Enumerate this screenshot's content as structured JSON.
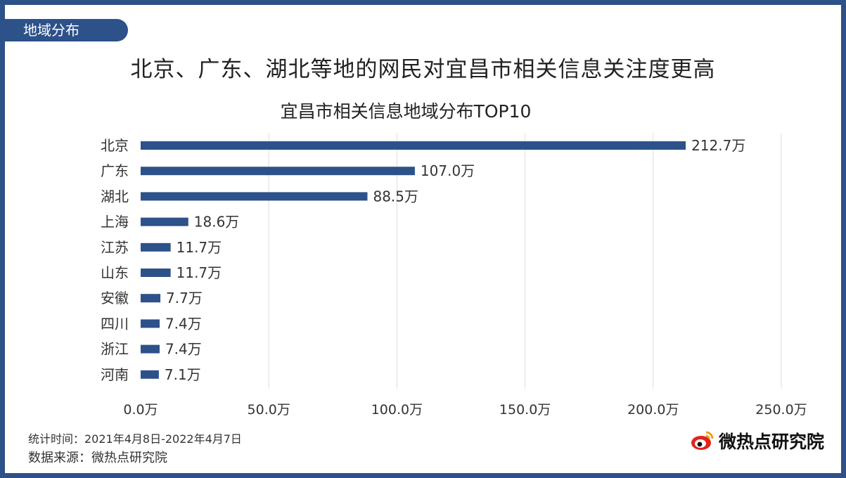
{
  "header": {
    "section_tag": "地域分布",
    "headline": "北京、广东、湖北等地的网民对宜昌市相关信息关注度更高"
  },
  "chart_data": {
    "type": "bar",
    "orientation": "horizontal",
    "title": "宜昌市相关信息地域分布TOP10",
    "categories": [
      "北京",
      "广东",
      "湖北",
      "上海",
      "江苏",
      "山东",
      "安徽",
      "四川",
      "浙江",
      "河南"
    ],
    "values": [
      212.7,
      107.0,
      88.5,
      18.6,
      11.7,
      11.7,
      7.7,
      7.4,
      7.4,
      7.1
    ],
    "value_labels": [
      "212.7万",
      "107.0万",
      "88.5万",
      "18.6万",
      "11.7万",
      "11.7万",
      "7.7万",
      "7.4万",
      "7.4万",
      "7.1万"
    ],
    "x_ticks": [
      0,
      50,
      100,
      150,
      200,
      250
    ],
    "x_tick_labels": [
      "0.0万",
      "50.0万",
      "100.0万",
      "150.0万",
      "200.0万",
      "250.0万"
    ],
    "xlim": [
      0,
      250
    ],
    "grid": "vertical",
    "legend": "none",
    "bar_color": "#2d5189"
  },
  "footer": {
    "period": "统计时间：2021年4月8日-2022年4月7日",
    "source": "数据来源：微热点研究院"
  },
  "logo": {
    "text": "微热点研究院",
    "icon": "weibo-eye-icon",
    "color": "#e2231a"
  }
}
